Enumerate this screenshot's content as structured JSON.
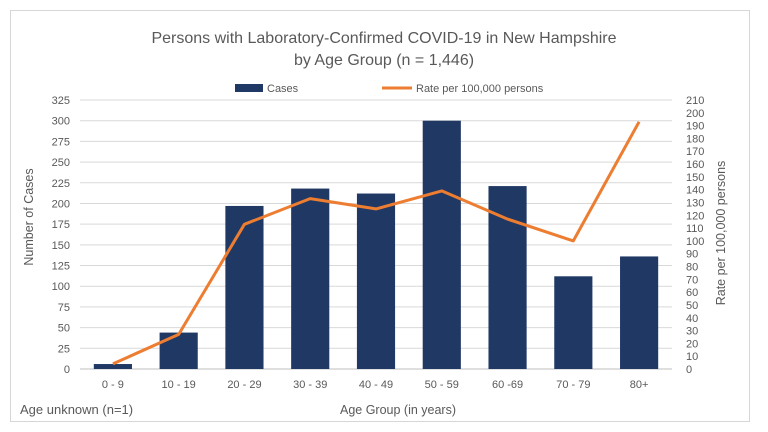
{
  "chart_data": {
    "type": "bar",
    "title_line1": "Persons with Laboratory-Confirmed COVID-19 in New Hampshire",
    "title_line2": "by Age Group (n = 1,446)",
    "xlabel": "Age Group (in years)",
    "ylabel": "Number of Cases",
    "ylabel_right": "Rate per 100,000 persons",
    "categories": [
      "0 - 9",
      "10 - 19",
      "20 - 29",
      "30 - 39",
      "40 - 49",
      "50 - 59",
      "60 -69",
      "70 - 79",
      "80+"
    ],
    "series": [
      {
        "name": "Cases",
        "type": "bar",
        "axis": "left",
        "color": "#1f3864",
        "values": [
          6,
          44,
          197,
          218,
          212,
          300,
          221,
          112,
          136
        ]
      },
      {
        "name": "Rate per 100,000 persons",
        "type": "line",
        "axis": "right",
        "color": "#ed7d31",
        "values": [
          4,
          27,
          113,
          133,
          125,
          139,
          117,
          100,
          193
        ]
      }
    ],
    "ylim": [
      0,
      325
    ],
    "ylim_right": [
      0,
      210
    ],
    "yticks": [
      0,
      25,
      50,
      75,
      100,
      125,
      150,
      175,
      200,
      225,
      250,
      275,
      300,
      325
    ],
    "yticks_right": [
      0,
      10,
      20,
      30,
      40,
      50,
      60,
      70,
      80,
      90,
      100,
      110,
      120,
      130,
      140,
      150,
      160,
      170,
      180,
      190,
      200,
      210
    ],
    "grid": true,
    "legend_position": "top",
    "note": "Age unknown (n=1)"
  }
}
